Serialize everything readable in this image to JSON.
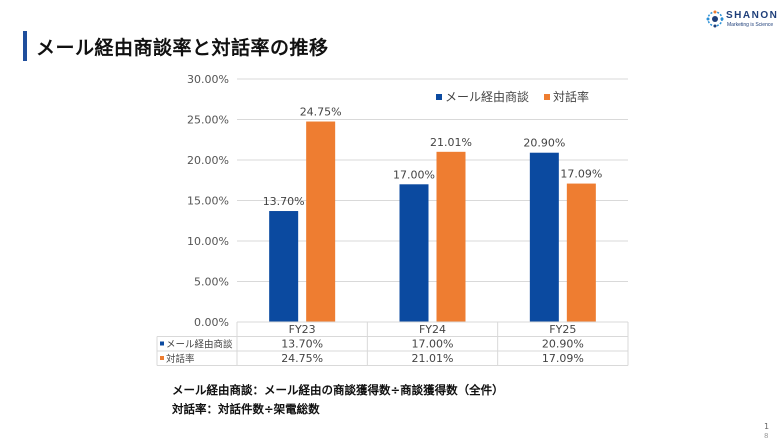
{
  "header": {
    "title": "メール経由商談率と対話率の推移",
    "logo_text": "SHANON",
    "logo_sub": "Marketing is Science"
  },
  "chart_data": {
    "type": "bar",
    "categories": [
      "FY23",
      "FY24",
      "FY25"
    ],
    "series": [
      {
        "name": "メール経由商談",
        "values": [
          13.7,
          17.0,
          20.9
        ],
        "labels": [
          "13.70%",
          "17.00%",
          "20.90%"
        ],
        "color": "#0b4aa0"
      },
      {
        "name": "対話率",
        "values": [
          24.75,
          21.01,
          17.09
        ],
        "labels": [
          "24.75%",
          "21.01%",
          "17.09%"
        ],
        "color": "#ee7d31"
      }
    ],
    "ylim": [
      0,
      30
    ],
    "yticks": [
      "0.00%",
      "5.00%",
      "10.00%",
      "15.00%",
      "20.00%",
      "25.00%",
      "30.00%"
    ],
    "grid": true,
    "legend_position": "top-right",
    "data_table": true
  },
  "notes": {
    "line1": "メール経由商談：メール経由の商談獲得数÷商談獲得数（全件）",
    "line2": "対話率：対話件数÷架電総数"
  },
  "page": {
    "number": "1",
    "sub": "8"
  },
  "colors": {
    "accent": "#1f4e9c",
    "series1": "#0b4aa0",
    "series2": "#ee7d31"
  }
}
